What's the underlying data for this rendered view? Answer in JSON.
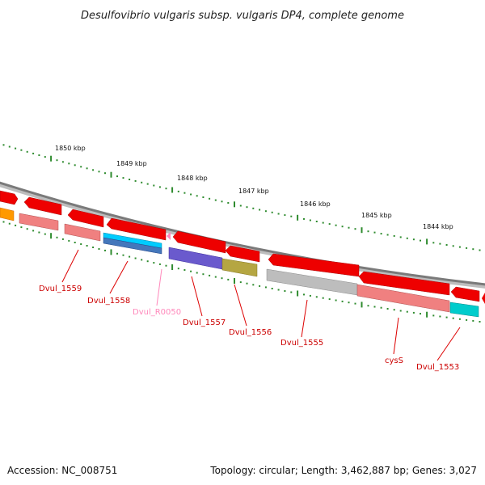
{
  "title": "Desulfovibrio vulgaris subsp. vulgaris DP4, complete genome",
  "footer": {
    "accession": "Accession: NC_008751",
    "summary": "Topology: circular; Length: 3,462,887 bp; Genes: 3,027"
  },
  "colors": {
    "backbone": "#8a8a8a",
    "tick": "#2e8b2e",
    "label": "#cc0000",
    "rna_label": "#ff88bb"
  },
  "ticks": [
    {
      "label": "1850 kbp"
    },
    {
      "label": "1849 kbp"
    },
    {
      "label": "1848 kbp"
    },
    {
      "label": "1847 kbp"
    },
    {
      "label": "1846 kbp"
    },
    {
      "label": "1845 kbp"
    },
    {
      "label": "1844 kbp"
    }
  ],
  "gene_labels": [
    {
      "text": "Dvul_1559",
      "color": "#cc0000"
    },
    {
      "text": "Dvul_1558",
      "color": "#cc0000"
    },
    {
      "text": "Dvul_R0050",
      "color": "#ff88bb"
    },
    {
      "text": "Dvul_1557",
      "color": "#cc0000"
    },
    {
      "text": "Dvul_1556",
      "color": "#cc0000"
    },
    {
      "text": "Dvul_1555",
      "color": "#cc0000"
    },
    {
      "text": "cysS",
      "color": "#cc0000"
    },
    {
      "text": "Dvul_1553",
      "color": "#cc0000"
    }
  ]
}
